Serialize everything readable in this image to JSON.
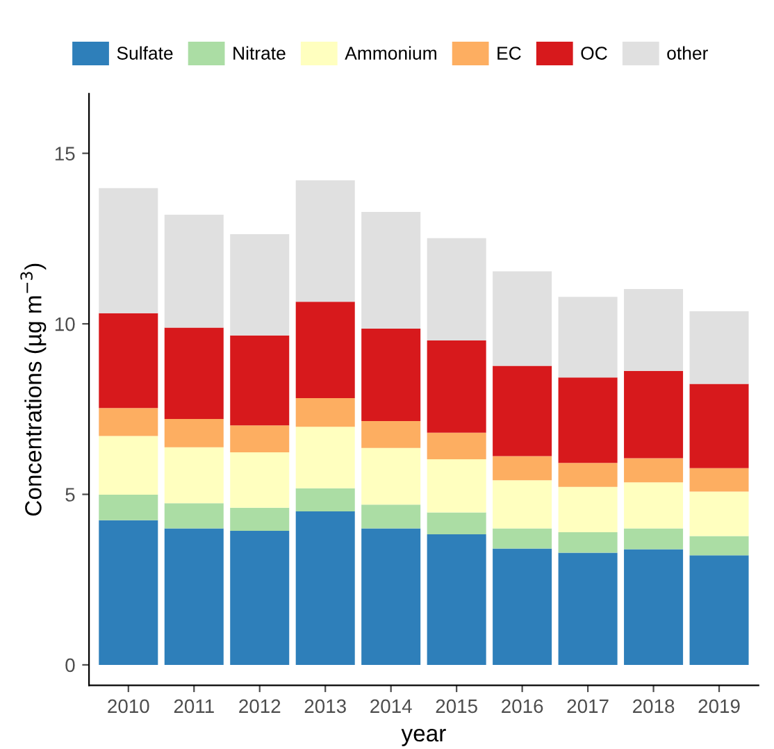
{
  "chart_data": {
    "type": "bar",
    "stacked": true,
    "xlabel": "year",
    "ylabel": "Concentrations (µg m$^{−3}$)",
    "categories": [
      "2010",
      "2011",
      "2012",
      "2013",
      "2014",
      "2015",
      "2016",
      "2017",
      "2018",
      "2019"
    ],
    "series": [
      {
        "name": "Sulfate",
        "color": "#2e7fba",
        "values": [
          4.24,
          4.0,
          3.93,
          4.5,
          4.0,
          3.83,
          3.41,
          3.29,
          3.39,
          3.21
        ]
      },
      {
        "name": "Nitrate",
        "color": "#abdda4",
        "values": [
          0.75,
          0.74,
          0.68,
          0.68,
          0.7,
          0.64,
          0.59,
          0.6,
          0.61,
          0.57
        ]
      },
      {
        "name": "Ammonium",
        "color": "#ffffbf",
        "values": [
          1.72,
          1.64,
          1.62,
          1.8,
          1.66,
          1.56,
          1.41,
          1.33,
          1.35,
          1.3
        ]
      },
      {
        "name": "EC",
        "color": "#fdae61",
        "values": [
          0.82,
          0.83,
          0.79,
          0.84,
          0.79,
          0.78,
          0.71,
          0.7,
          0.71,
          0.69
        ]
      },
      {
        "name": "OC",
        "color": "#d7191c",
        "values": [
          2.78,
          2.68,
          2.64,
          2.83,
          2.71,
          2.7,
          2.65,
          2.51,
          2.56,
          2.47
        ]
      },
      {
        "name": "other",
        "color": "#e0e0e0",
        "values": [
          3.67,
          3.31,
          2.97,
          3.56,
          3.42,
          3.0,
          2.77,
          2.36,
          2.4,
          2.13
        ]
      }
    ],
    "ylim": [
      -0.6,
      16.75
    ],
    "yticks": [
      0,
      5,
      10,
      15
    ],
    "grid": false,
    "legend": "top"
  }
}
